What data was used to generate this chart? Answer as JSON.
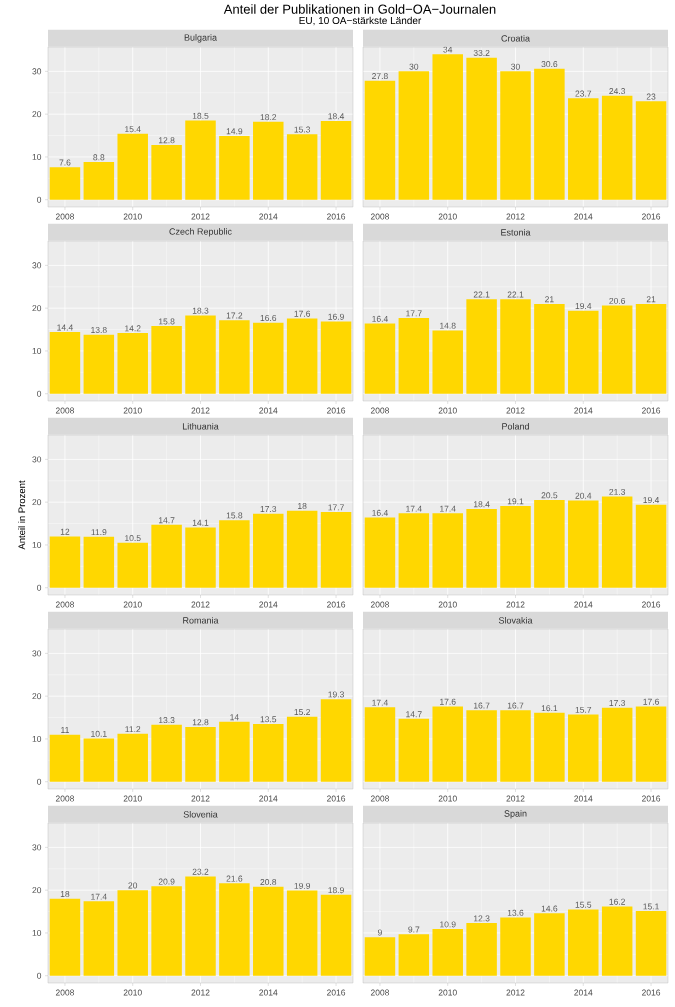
{
  "chart_data": [
    {
      "type": "bar",
      "title": "Bulgaria",
      "annotations": [
        "Anteil der Publikationen in Gold−OA−Journalen",
        "EU, 10 OA−stärkste Länder"
      ],
      "x": [
        2008,
        2009,
        2010,
        2011,
        2012,
        2013,
        2014,
        2015,
        2016
      ],
      "values": [
        7.6,
        8.8,
        15.4,
        12.8,
        18.5,
        14.9,
        18.2,
        15.3,
        18.4
      ],
      "color": "#ffd700",
      "xlim": [
        2007.5,
        2016.5
      ],
      "ylim": [
        -1.7,
        35.7
      ],
      "xticks": [
        2008,
        2010,
        2012,
        2014,
        2016
      ],
      "yticks": [
        0,
        10,
        20,
        30
      ],
      "grid": true,
      "data_labels": true
    },
    {
      "type": "bar",
      "title": "Croatia",
      "x": [
        2008,
        2009,
        2010,
        2011,
        2012,
        2013,
        2014,
        2015,
        2016
      ],
      "values": [
        27.8,
        30,
        34,
        33.2,
        30,
        30.6,
        23.7,
        24.3,
        23
      ],
      "color": "#ffd700",
      "xlim": [
        2007.5,
        2016.5
      ],
      "ylim": [
        -1.7,
        35.7
      ],
      "xticks": [
        2008,
        2010,
        2012,
        2014,
        2016
      ],
      "yticks": [
        0,
        10,
        20,
        30
      ],
      "grid": true,
      "data_labels": true,
      "tick_labels": "x"
    },
    {
      "type": "bar",
      "title": "Czech Republic",
      "x": [
        2008,
        2009,
        2010,
        2011,
        2012,
        2013,
        2014,
        2015,
        2016
      ],
      "values": [
        14.4,
        13.8,
        14.2,
        15.8,
        18.3,
        17.2,
        16.6,
        17.6,
        16.9
      ],
      "color": "#ffd700",
      "xlim": [
        2007.5,
        2016.5
      ],
      "ylim": [
        -1.7,
        35.7
      ],
      "xticks": [
        2008,
        2010,
        2012,
        2014,
        2016
      ],
      "yticks": [
        0,
        10,
        20,
        30
      ],
      "grid": true,
      "data_labels": true
    },
    {
      "type": "bar",
      "title": "Estonia",
      "x": [
        2008,
        2009,
        2010,
        2011,
        2012,
        2013,
        2014,
        2015,
        2016
      ],
      "values": [
        16.4,
        17.7,
        14.8,
        22.1,
        22.1,
        21,
        19.4,
        20.6,
        21
      ],
      "color": "#ffd700",
      "xlim": [
        2007.5,
        2016.5
      ],
      "ylim": [
        -1.7,
        35.7
      ],
      "xticks": [
        2008,
        2010,
        2012,
        2014,
        2016
      ],
      "yticks": [
        0,
        10,
        20,
        30
      ],
      "grid": true,
      "data_labels": true,
      "tick_labels": "x"
    },
    {
      "type": "bar",
      "title": "Lithuania",
      "ylabel": "Anteil in Prozent",
      "x": [
        2008,
        2009,
        2010,
        2011,
        2012,
        2013,
        2014,
        2015,
        2016
      ],
      "values": [
        12,
        11.9,
        10.5,
        14.7,
        14.1,
        15.8,
        17.3,
        18,
        17.7
      ],
      "color": "#ffd700",
      "xlim": [
        2007.5,
        2016.5
      ],
      "ylim": [
        -1.7,
        35.7
      ],
      "xticks": [
        2008,
        2010,
        2012,
        2014,
        2016
      ],
      "yticks": [
        0,
        10,
        20,
        30
      ],
      "grid": true,
      "data_labels": true
    },
    {
      "type": "bar",
      "title": "Poland",
      "x": [
        2008,
        2009,
        2010,
        2011,
        2012,
        2013,
        2014,
        2015,
        2016
      ],
      "values": [
        16.4,
        17.4,
        17.4,
        18.4,
        19.1,
        20.5,
        20.4,
        21.3,
        19.4
      ],
      "color": "#ffd700",
      "xlim": [
        2007.5,
        2016.5
      ],
      "ylim": [
        -1.7,
        35.7
      ],
      "xticks": [
        2008,
        2010,
        2012,
        2014,
        2016
      ],
      "yticks": [
        0,
        10,
        20,
        30
      ],
      "grid": true,
      "data_labels": true,
      "tick_labels": "x"
    },
    {
      "type": "bar",
      "title": "Romania",
      "x": [
        2008,
        2009,
        2010,
        2011,
        2012,
        2013,
        2014,
        2015,
        2016
      ],
      "values": [
        11,
        10.1,
        11.2,
        13.3,
        12.8,
        14,
        13.5,
        15.2,
        19.3
      ],
      "color": "#ffd700",
      "xlim": [
        2007.5,
        2016.5
      ],
      "ylim": [
        -1.7,
        35.7
      ],
      "xticks": [
        2008,
        2010,
        2012,
        2014,
        2016
      ],
      "yticks": [
        0,
        10,
        20,
        30
      ],
      "grid": true,
      "data_labels": true
    },
    {
      "type": "bar",
      "title": "Slovakia",
      "x": [
        2008,
        2009,
        2010,
        2011,
        2012,
        2013,
        2014,
        2015,
        2016
      ],
      "values": [
        17.4,
        14.7,
        17.6,
        16.7,
        16.7,
        16.1,
        15.7,
        17.3,
        17.6
      ],
      "color": "#ffd700",
      "xlim": [
        2007.5,
        2016.5
      ],
      "ylim": [
        -1.7,
        35.7
      ],
      "xticks": [
        2008,
        2010,
        2012,
        2014,
        2016
      ],
      "yticks": [
        0,
        10,
        20,
        30
      ],
      "grid": true,
      "data_labels": true,
      "tick_labels": "x"
    },
    {
      "type": "bar",
      "title": "Slovenia",
      "x": [
        2008,
        2009,
        2010,
        2011,
        2012,
        2013,
        2014,
        2015,
        2016
      ],
      "values": [
        18,
        17.4,
        20,
        20.9,
        23.2,
        21.6,
        20.8,
        19.9,
        18.9
      ],
      "color": "#ffd700",
      "xlim": [
        2007.5,
        2016.5
      ],
      "ylim": [
        -1.7,
        35.7
      ],
      "xticks": [
        2008,
        2010,
        2012,
        2014,
        2016
      ],
      "yticks": [
        0,
        10,
        20,
        30
      ],
      "grid": true,
      "data_labels": true
    },
    {
      "type": "bar",
      "title": "Spain",
      "x": [
        2008,
        2009,
        2010,
        2011,
        2012,
        2013,
        2014,
        2015,
        2016
      ],
      "values": [
        9,
        9.7,
        10.9,
        12.3,
        13.6,
        14.6,
        15.5,
        16.2,
        15.1
      ],
      "color": "#ffd700",
      "xlim": [
        2007.5,
        2016.5
      ],
      "ylim": [
        -1.7,
        35.7
      ],
      "xticks": [
        2008,
        2010,
        2012,
        2014,
        2016
      ],
      "yticks": [
        0,
        10,
        20,
        30
      ],
      "grid": true,
      "data_labels": true,
      "tick_labels": "x"
    }
  ]
}
